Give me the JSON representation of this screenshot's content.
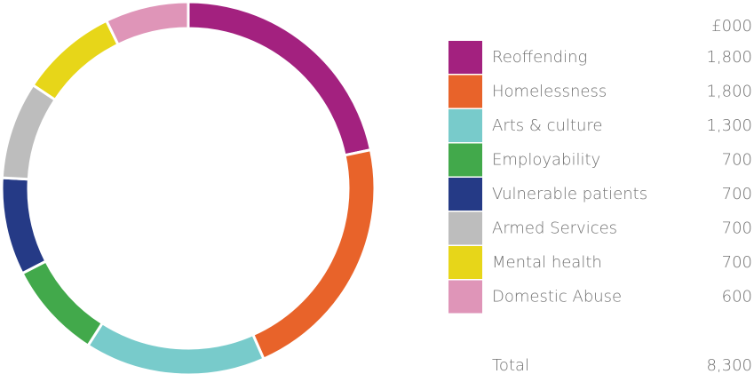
{
  "chart_data": {
    "type": "donut",
    "unit": "£000",
    "categories": [
      "Reoffending",
      "Homelessness",
      "Arts & culture",
      "Employability",
      "Vulnerable patients",
      "Armed Services",
      "Mental health",
      "Domestic Abuse"
    ],
    "values": [
      1800,
      1800,
      1300,
      700,
      700,
      700,
      700,
      600
    ],
    "value_labels": [
      "1,800",
      "1,800",
      "1,300",
      "700",
      "700",
      "700",
      "700",
      "600"
    ],
    "colors": [
      "#a3217f",
      "#e8632a",
      "#78cbcb",
      "#42a94b",
      "#253a86",
      "#bdbdbd",
      "#e7d619",
      "#df95b8"
    ],
    "total_label": "Total",
    "total": {
      "value": 8300,
      "label": "8,300"
    }
  }
}
